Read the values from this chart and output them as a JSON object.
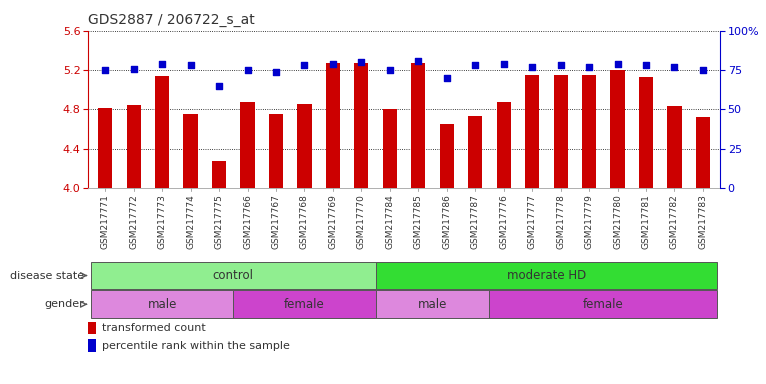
{
  "title": "GDS2887 / 206722_s_at",
  "samples": [
    "GSM217771",
    "GSM217772",
    "GSM217773",
    "GSM217774",
    "GSM217775",
    "GSM217766",
    "GSM217767",
    "GSM217768",
    "GSM217769",
    "GSM217770",
    "GSM217784",
    "GSM217785",
    "GSM217786",
    "GSM217787",
    "GSM217776",
    "GSM217777",
    "GSM217778",
    "GSM217779",
    "GSM217780",
    "GSM217781",
    "GSM217782",
    "GSM217783"
  ],
  "bar_values": [
    4.81,
    4.85,
    5.14,
    4.75,
    4.28,
    4.88,
    4.75,
    4.86,
    5.27,
    5.27,
    4.8,
    5.27,
    4.65,
    4.73,
    4.88,
    5.15,
    5.15,
    5.15,
    5.2,
    5.13,
    4.83,
    4.72
  ],
  "dot_values": [
    75,
    76,
    79,
    78,
    65,
    75,
    74,
    78,
    79,
    80,
    75,
    81,
    70,
    78,
    79,
    77,
    78,
    77,
    79,
    78,
    77,
    75
  ],
  "ylim_left": [
    4.0,
    5.6
  ],
  "ylim_right": [
    0,
    100
  ],
  "yticks_left": [
    4.0,
    4.4,
    4.8,
    5.2,
    5.6
  ],
  "yticks_right": [
    0,
    25,
    50,
    75,
    100
  ],
  "bar_color": "#cc0000",
  "dot_color": "#0000cc",
  "disease_state_groups": [
    {
      "label": "control",
      "start": 0,
      "end": 10,
      "color": "#90ee90"
    },
    {
      "label": "moderate HD",
      "start": 10,
      "end": 22,
      "color": "#33dd33"
    }
  ],
  "gender_groups": [
    {
      "label": "male",
      "start": 0,
      "end": 5,
      "color": "#dd88dd"
    },
    {
      "label": "female",
      "start": 5,
      "end": 10,
      "color": "#cc44cc"
    },
    {
      "label": "male",
      "start": 10,
      "end": 14,
      "color": "#dd88dd"
    },
    {
      "label": "female",
      "start": 14,
      "end": 22,
      "color": "#cc44cc"
    }
  ],
  "legend_items": [
    {
      "label": "transformed count",
      "color": "#cc0000"
    },
    {
      "label": "percentile rank within the sample",
      "color": "#0000cc"
    }
  ],
  "label_disease_state": "disease state",
  "label_gender": "gender",
  "title_color": "#333333",
  "left_axis_color": "#cc0000",
  "right_axis_color": "#0000cc",
  "bg_color": "#ffffff"
}
